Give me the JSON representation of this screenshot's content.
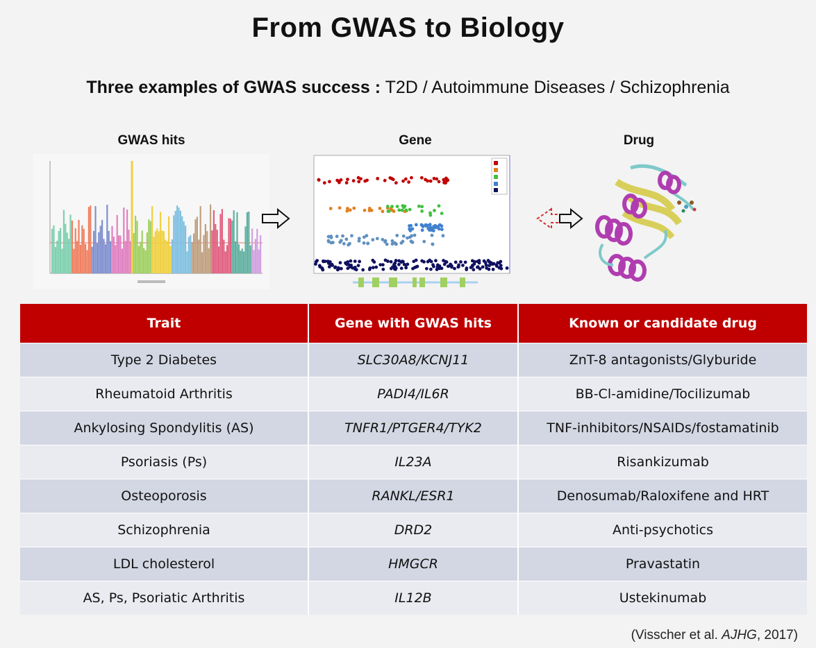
{
  "title": "From GWAS to Biology",
  "subtitle": {
    "bold": "Three examples of GWAS success :",
    "rest": " T2D / Autoimmune Diseases / Schizophrenia"
  },
  "panels": {
    "gwas_label": "GWAS hits",
    "gene_label": "Gene",
    "drug_label": "Drug"
  },
  "table": {
    "headers": [
      "Trait",
      "Gene with GWAS hits",
      "Known or candidate drug"
    ],
    "rows": [
      {
        "trait": "Type 2 Diabetes",
        "gene": "SLC30A8/KCNJ11",
        "drug": "ZnT-8 antagonists/Glyburide"
      },
      {
        "trait": "Rheumatoid Arthritis",
        "gene": "PADI4/IL6R",
        "drug": "BB-Cl-amidine/Tocilizumab"
      },
      {
        "trait": "Ankylosing Spondylitis (AS)",
        "gene": "TNFR1/PTGER4/TYK2",
        "drug": "TNF-inhibitors/NSAIDs/fostamatinib"
      },
      {
        "trait": "Psoriasis (Ps)",
        "gene": "IL23A",
        "drug": "Risankizumab"
      },
      {
        "trait": "Osteoporosis",
        "gene": "RANKL/ESR1",
        "drug": "Denosumab/Raloxifene and HRT"
      },
      {
        "trait": "Schizophrenia",
        "gene": "DRD2",
        "drug": "Anti-psychotics"
      },
      {
        "trait": "LDL cholesterol",
        "gene": "HMGCR",
        "drug": "Pravastatin"
      },
      {
        "trait": "AS, Ps, Psoriatic Arthritis",
        "gene": "IL12B",
        "drug": "Ustekinumab"
      }
    ]
  },
  "citation": {
    "pre": "(Visscher et al. ",
    "journal": "AJHG",
    "post": ", 2017)"
  },
  "colors": {
    "header_red": "#c00000",
    "row_odd": "#d3d7e3",
    "row_even": "#e9ebf0",
    "helix_purple": "#b03db0",
    "sheet_yellow": "#d8cf5a",
    "coil_teal": "#7fc9c9"
  }
}
